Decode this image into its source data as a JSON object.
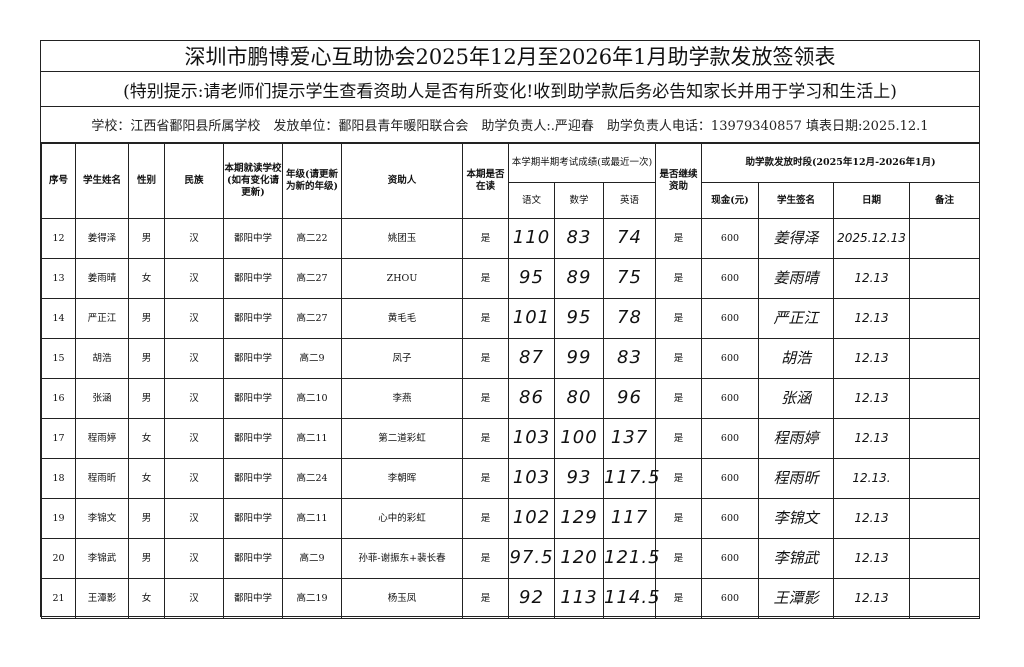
{
  "title": "深圳市鹏博爱心互助协会2025年12月至2026年1月助学款发放签领表",
  "notice": "(特别提示:请老师们提示学生查看资助人是否有所变化!收到助学款后务必告知家长并用于学习和生活上)",
  "info": "学校：江西省鄱阳县所属学校　发放单位：鄱阳县青年暖阳联合会　助学负责人:.严迎春　助学负责人电话：13979340857 填表日期:2025.12.1",
  "headers": {
    "no": "序号",
    "name": "学生姓名",
    "gender": "性别",
    "ethnicity": "民族",
    "school": "本期就读学校(如有变化请更新)",
    "grade": "年级(请更新为新的年级)",
    "sponsor": "资助人",
    "enrolled": "本期是否在读",
    "scores": "本学期半期考试成绩(或最近一次)",
    "chinese": "语文",
    "math": "数学",
    "english": "英语",
    "continue": "是否继续资助",
    "period": "助学款发放时段(2025年12月-2026年1月)",
    "cash": "现金(元)",
    "signature": "学生签名",
    "date": "日期",
    "remark": "备注"
  },
  "rows": [
    {
      "no": "12",
      "name": "姜得泽",
      "gender": "男",
      "ethnicity": "汉",
      "school": "鄱阳中学",
      "grade": "高二22",
      "sponsor": "姚团玉",
      "enrolled": "是",
      "chinese": "110",
      "math": "83",
      "english": "74",
      "continue": "是",
      "cash": "600",
      "signature": "姜得泽",
      "date": "2025.12.13",
      "remark": ""
    },
    {
      "no": "13",
      "name": "姜雨晴",
      "gender": "女",
      "ethnicity": "汉",
      "school": "鄱阳中学",
      "grade": "高二27",
      "sponsor": "ZHOU",
      "enrolled": "是",
      "chinese": "95",
      "math": "89",
      "english": "75",
      "continue": "是",
      "cash": "600",
      "signature": "姜雨晴",
      "date": "12.13",
      "remark": ""
    },
    {
      "no": "14",
      "name": "严正江",
      "gender": "男",
      "ethnicity": "汉",
      "school": "鄱阳中学",
      "grade": "高二27",
      "sponsor": "黄毛毛",
      "enrolled": "是",
      "chinese": "101",
      "math": "95",
      "english": "78",
      "continue": "是",
      "cash": "600",
      "signature": "严正江",
      "date": "12.13",
      "remark": ""
    },
    {
      "no": "15",
      "name": "胡浩",
      "gender": "男",
      "ethnicity": "汉",
      "school": "鄱阳中学",
      "grade": "高二9",
      "sponsor": "凤子",
      "enrolled": "是",
      "chinese": "87",
      "math": "99",
      "english": "83",
      "continue": "是",
      "cash": "600",
      "signature": "胡浩",
      "date": "12.13",
      "remark": ""
    },
    {
      "no": "16",
      "name": "张涵",
      "gender": "男",
      "ethnicity": "汉",
      "school": "鄱阳中学",
      "grade": "高二10",
      "sponsor": "李燕",
      "enrolled": "是",
      "chinese": "86",
      "math": "80",
      "english": "96",
      "continue": "是",
      "cash": "600",
      "signature": "张涵",
      "date": "12.13",
      "remark": ""
    },
    {
      "no": "17",
      "name": "程雨婷",
      "gender": "女",
      "ethnicity": "汉",
      "school": "鄱阳中学",
      "grade": "高二11",
      "sponsor": "第二道彩虹",
      "enrolled": "是",
      "chinese": "103",
      "math": "100",
      "english": "137",
      "continue": "是",
      "cash": "600",
      "signature": "程雨婷",
      "date": "12.13",
      "remark": ""
    },
    {
      "no": "18",
      "name": "程雨昕",
      "gender": "女",
      "ethnicity": "汉",
      "school": "鄱阳中学",
      "grade": "高二24",
      "sponsor": "李朝晖",
      "enrolled": "是",
      "chinese": "103",
      "math": "93",
      "english": "117.5",
      "continue": "是",
      "cash": "600",
      "signature": "程雨昕",
      "date": "12.13.",
      "remark": ""
    },
    {
      "no": "19",
      "name": "李锦文",
      "gender": "男",
      "ethnicity": "汉",
      "school": "鄱阳中学",
      "grade": "高二11",
      "sponsor": "心中的彩虹",
      "enrolled": "是",
      "chinese": "102",
      "math": "129",
      "english": "117",
      "continue": "是",
      "cash": "600",
      "signature": "李锦文",
      "date": "12.13",
      "remark": ""
    },
    {
      "no": "20",
      "name": "李锦武",
      "gender": "男",
      "ethnicity": "汉",
      "school": "鄱阳中学",
      "grade": "高二9",
      "sponsor": "孙菲-谢振东+裴长春",
      "enrolled": "是",
      "chinese": "97.5",
      "math": "120",
      "english": "121.5",
      "continue": "是",
      "cash": "600",
      "signature": "李锦武",
      "date": "12.13",
      "remark": ""
    },
    {
      "no": "21",
      "name": "王潭影",
      "gender": "女",
      "ethnicity": "汉",
      "school": "鄱阳中学",
      "grade": "高二19",
      "sponsor": "杨玉凤",
      "enrolled": "是",
      "chinese": "92",
      "math": "113",
      "english": "114.5",
      "continue": "是",
      "cash": "600",
      "signature": "王潭影",
      "date": "12.13",
      "remark": ""
    }
  ]
}
